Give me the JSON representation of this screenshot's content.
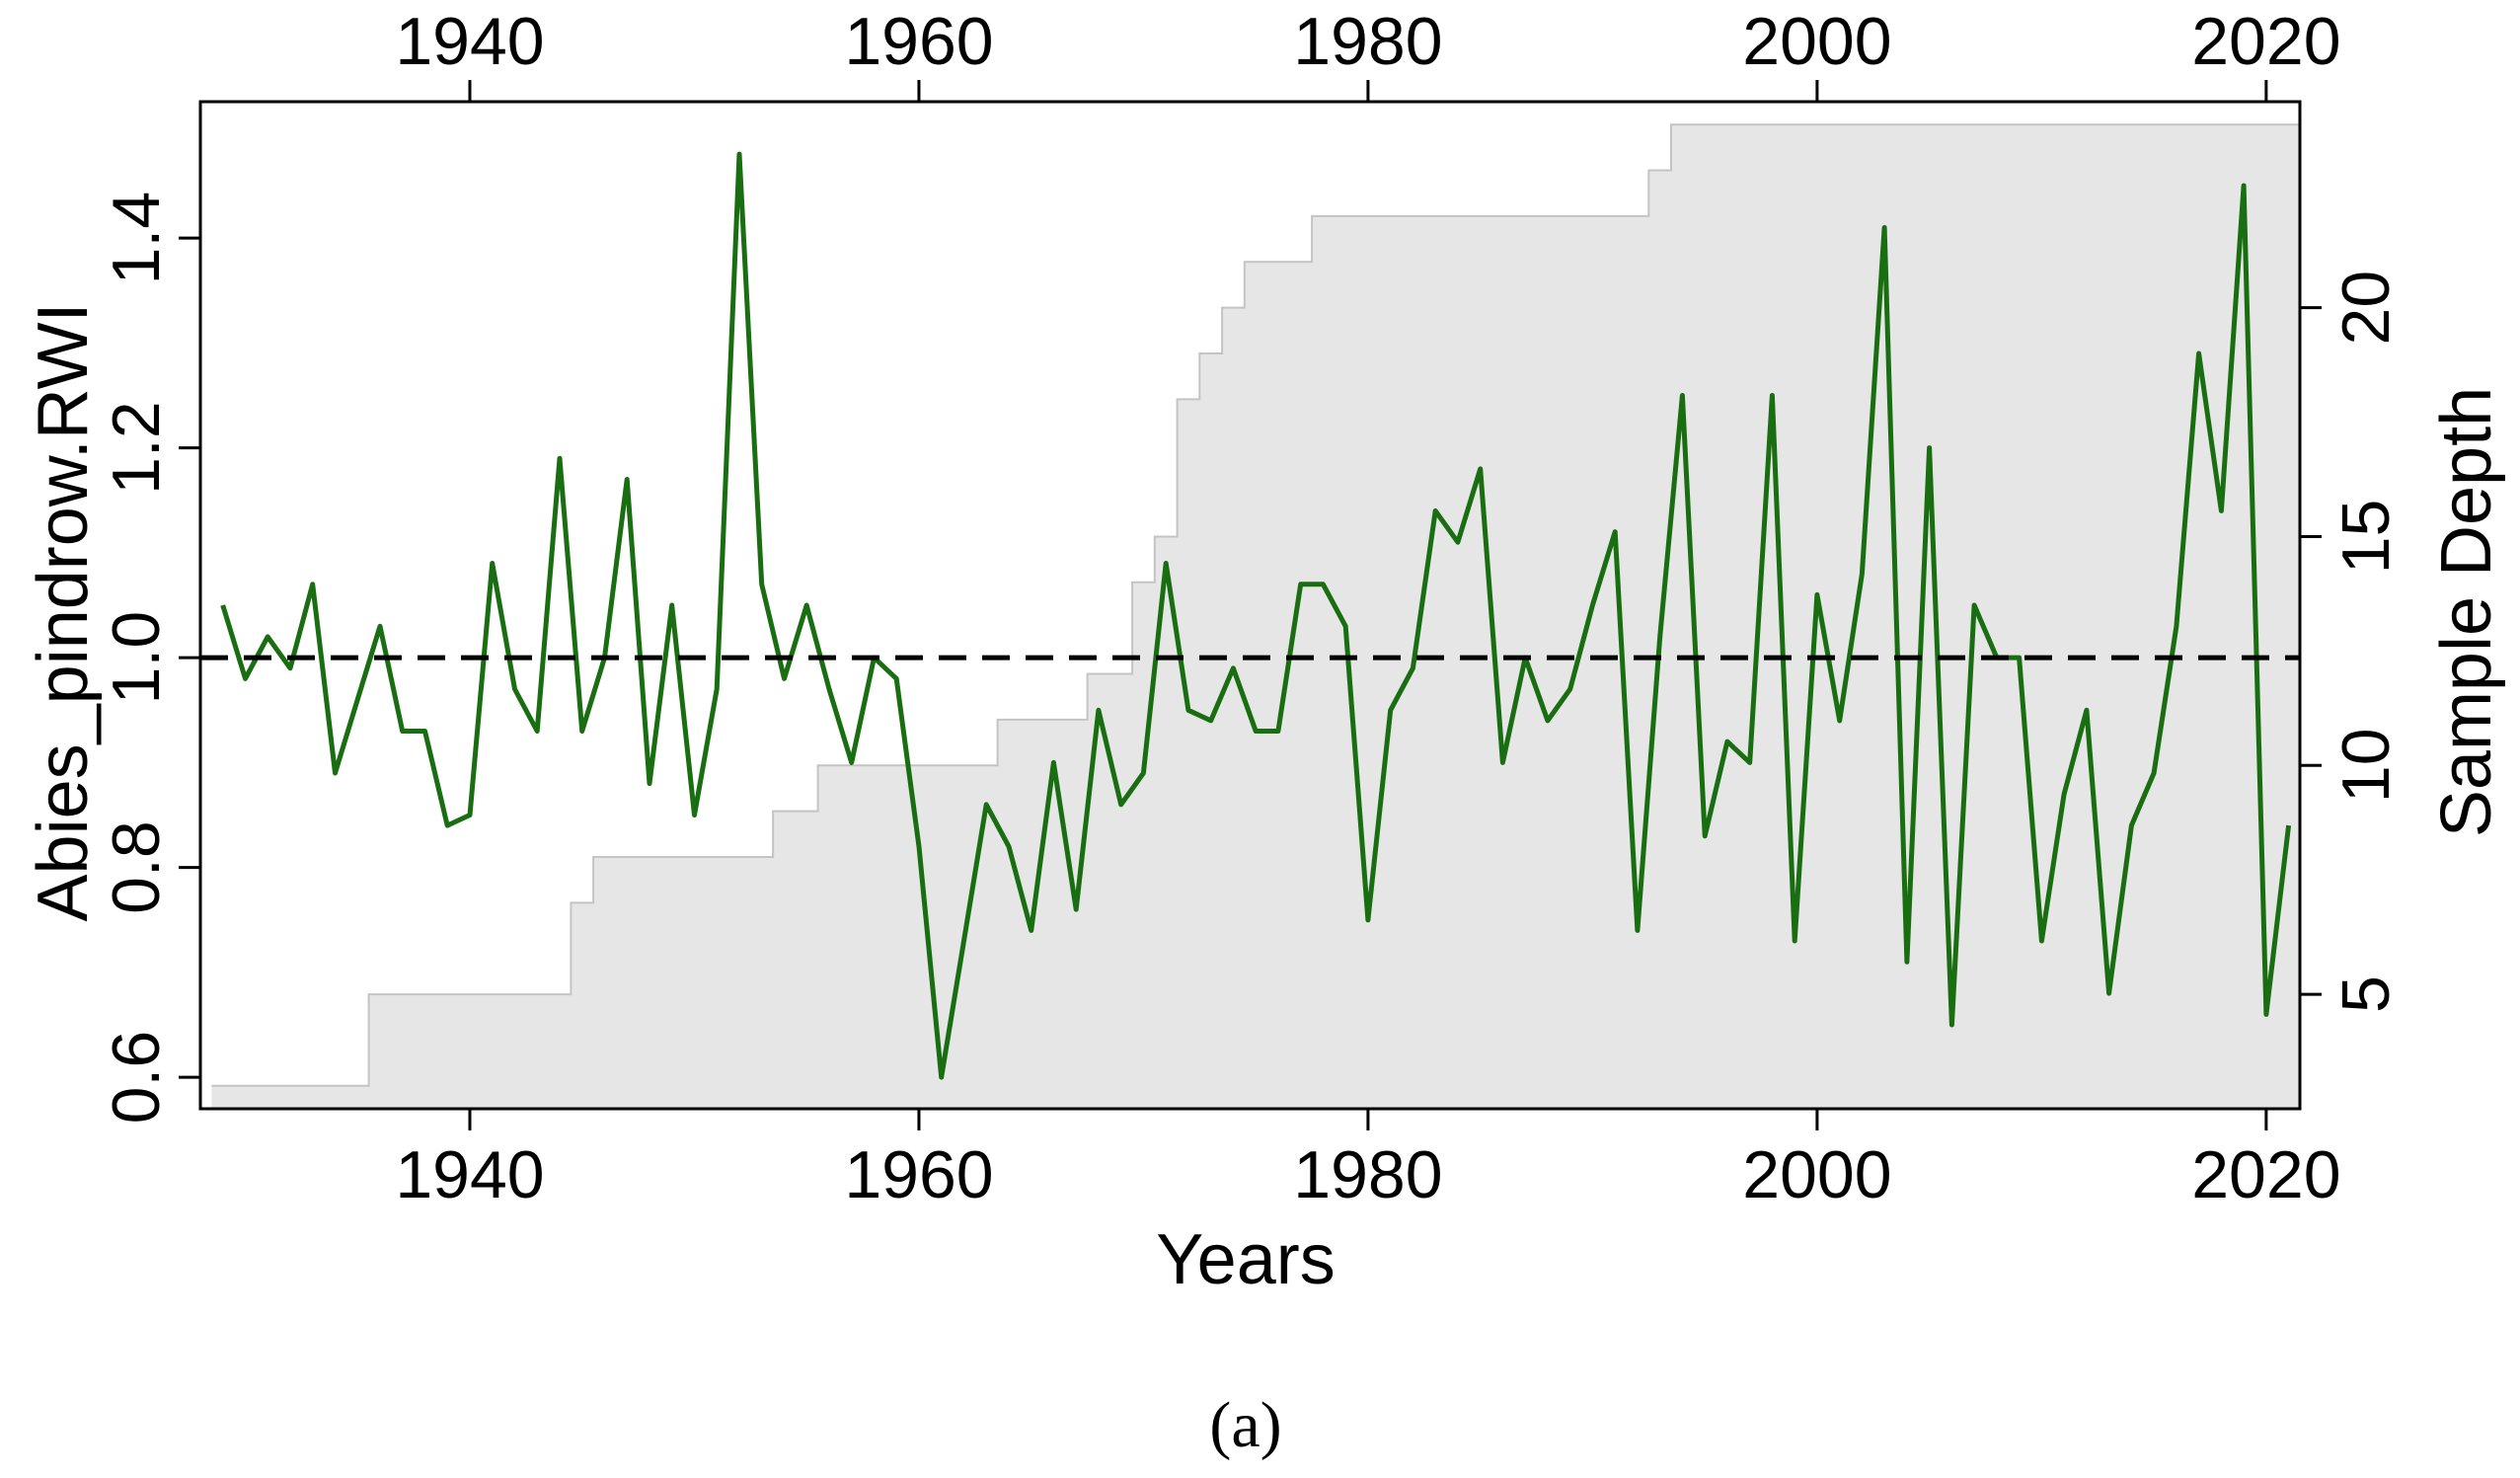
{
  "chart_data": {
    "type": "line",
    "xlabel": "Years",
    "ylabel": "Abies_pindrow.RWI",
    "y2label": "Sample Depth",
    "caption": "(a)",
    "xlim": [
      1928,
      2021.5
    ],
    "ylim": [
      0.57,
      1.53
    ],
    "y2lim": [
      2.5,
      24.5
    ],
    "x_ticks": [
      1940,
      1960,
      1980,
      2000,
      2020
    ],
    "y_ticks": [
      0.6,
      0.8,
      1.0,
      1.2,
      1.4
    ],
    "y_tick_labels": [
      "0.6",
      "0.8",
      "1.0",
      "1.2",
      "1.4"
    ],
    "y2_ticks": [
      5,
      10,
      15,
      20
    ],
    "reference_line": 1.0,
    "colors": {
      "rwi_line": "#1a6e12",
      "sample_depth_fill": "#e6e6e6",
      "sample_depth_edge": "#c4c4c4",
      "reference_line": "#000000"
    },
    "series": [
      {
        "kind": "line",
        "x": [
          1929,
          1930,
          1931,
          1932,
          1933,
          1934,
          1935,
          1936,
          1937,
          1938,
          1939,
          1940,
          1941,
          1942,
          1943,
          1944,
          1945,
          1946,
          1947,
          1948,
          1949,
          1950,
          1951,
          1952,
          1953,
          1954,
          1955,
          1956,
          1957,
          1958,
          1959,
          1960,
          1961,
          1962,
          1963,
          1964,
          1965,
          1966,
          1967,
          1968,
          1969,
          1970,
          1971,
          1972,
          1973,
          1974,
          1975,
          1976,
          1977,
          1978,
          1979,
          1980,
          1981,
          1982,
          1983,
          1984,
          1985,
          1986,
          1987,
          1988,
          1989,
          1990,
          1991,
          1992,
          1993,
          1994,
          1995,
          1996,
          1997,
          1998,
          1999,
          2000,
          2001,
          2002,
          2003,
          2004,
          2005,
          2006,
          2007,
          2008,
          2009,
          2010,
          2011,
          2012,
          2013,
          2014,
          2015,
          2016,
          2017,
          2018,
          2019,
          2020,
          2021
        ],
        "values": [
          1.05,
          0.98,
          1.02,
          0.99,
          1.07,
          0.89,
          0.96,
          1.03,
          0.93,
          0.93,
          0.84,
          0.85,
          1.09,
          0.97,
          0.93,
          1.19,
          0.93,
          1.0,
          1.17,
          0.88,
          1.05,
          0.85,
          0.97,
          1.48,
          1.07,
          0.98,
          1.05,
          0.97,
          0.9,
          1.0,
          0.98,
          0.82,
          0.6,
          0.73,
          0.86,
          0.82,
          0.74,
          0.9,
          0.76,
          0.95,
          0.86,
          0.89,
          1.09,
          0.95,
          0.94,
          0.99,
          0.93,
          0.93,
          1.07,
          1.07,
          1.03,
          0.75,
          0.95,
          0.99,
          1.14,
          1.11,
          1.18,
          0.9,
          1.0,
          0.94,
          0.97,
          1.05,
          1.12,
          0.74,
          1.02,
          1.25,
          0.83,
          0.92,
          0.9,
          1.25,
          0.73,
          1.06,
          0.94,
          1.08,
          1.41,
          0.71,
          1.2,
          0.65,
          1.05,
          1.0,
          1.0,
          0.73,
          0.87,
          0.95,
          0.68,
          0.84,
          0.89,
          1.03,
          1.29,
          1.14,
          1.45,
          0.66,
          0.84
        ]
      },
      {
        "kind": "step-area",
        "axis": "right",
        "x": [
          1929,
          1930,
          1931,
          1932,
          1933,
          1934,
          1935,
          1936,
          1937,
          1938,
          1939,
          1940,
          1941,
          1942,
          1943,
          1944,
          1945,
          1946,
          1947,
          1948,
          1949,
          1950,
          1951,
          1952,
          1953,
          1954,
          1955,
          1956,
          1957,
          1958,
          1959,
          1960,
          1961,
          1962,
          1963,
          1964,
          1965,
          1966,
          1967,
          1968,
          1969,
          1970,
          1971,
          1972,
          1973,
          1974,
          1975,
          1976,
          1977,
          1978,
          1979,
          1980,
          1981,
          1982,
          1983,
          1984,
          1985,
          1986,
          1987,
          1988,
          1989,
          1990,
          1991,
          1992,
          1993,
          1994,
          1995,
          1996,
          1997,
          1998,
          1999,
          2000,
          2001,
          2002,
          2003,
          2004,
          2005,
          2006,
          2007,
          2008,
          2009,
          2010,
          2011,
          2012,
          2013,
          2014,
          2015,
          2016,
          2017,
          2018,
          2019,
          2020,
          2021
        ],
        "values": [
          3,
          3,
          3,
          3,
          3,
          3,
          3,
          5,
          5,
          5,
          5,
          5,
          5,
          5,
          5,
          5,
          7,
          8,
          8,
          8,
          8,
          8,
          8,
          8,
          8,
          9,
          9,
          10,
          10,
          10,
          10,
          10,
          10,
          10,
          10,
          11,
          11,
          11,
          11,
          12,
          12,
          14,
          15,
          18,
          19,
          20,
          21,
          21,
          21,
          22,
          22,
          22,
          22,
          22,
          22,
          22,
          22,
          22,
          22,
          22,
          22,
          22,
          22,
          22,
          23,
          24,
          24,
          24,
          24,
          24,
          24,
          24,
          24,
          24,
          24,
          24,
          24,
          24,
          24,
          24,
          24,
          24,
          24,
          24,
          24,
          24,
          24,
          24,
          24,
          24,
          24,
          24,
          24
        ]
      }
    ]
  }
}
